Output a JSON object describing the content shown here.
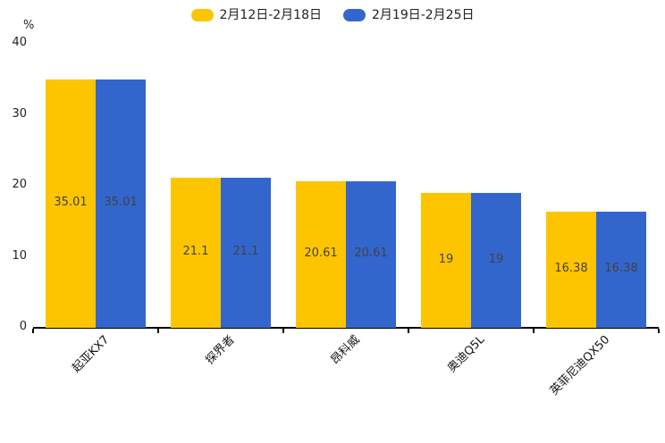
{
  "chart_data": {
    "type": "bar",
    "categories": [
      "起亚KX7",
      "探界者",
      "昂科威",
      "奥迪Q5L",
      "英菲尼迪QX50"
    ],
    "series": [
      {
        "name": "2月12日-2月18日",
        "color": "#FDC500",
        "values": [
          35.01,
          21.1,
          20.61,
          19,
          16.38
        ]
      },
      {
        "name": "2月19日-2月25日",
        "color": "#3366CC",
        "values": [
          35.01,
          21.1,
          20.61,
          19,
          16.38
        ]
      }
    ],
    "ylabel": "%",
    "ylim": [
      0,
      40
    ],
    "yticks": [
      0,
      10,
      20,
      30,
      40
    ],
    "grid": false,
    "legend_position": "top-center",
    "value_label_position": "inside-middle",
    "value_label_color": "#424242",
    "axis_color": "#000000",
    "x_label_rotation_deg": 45
  }
}
